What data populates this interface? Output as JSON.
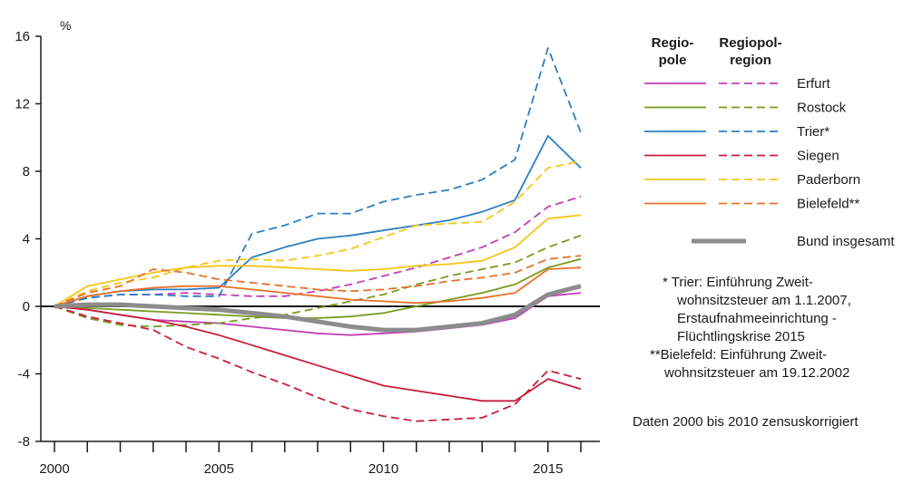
{
  "chart_data": {
    "type": "line",
    "unit_label": "%",
    "x": [
      2000,
      2001,
      2002,
      2003,
      2004,
      2005,
      2006,
      2007,
      2008,
      2009,
      2010,
      2011,
      2012,
      2013,
      2014,
      2015,
      2016
    ],
    "xlim": [
      1999.3,
      2016.6
    ],
    "ylim": [
      -8,
      16
    ],
    "y_ticks": [
      16,
      12,
      8,
      4,
      0,
      -4,
      -8
    ],
    "x_tick_labels": [
      "2000",
      "2005",
      "2010",
      "2015"
    ],
    "x_tick_label_years": [
      2000,
      2005,
      2010,
      2015
    ],
    "legend_headers": [
      "Regio-\npole",
      "Regiopol-\nregion"
    ],
    "legend_header_lines": [
      [
        "Regio-",
        "pole"
      ],
      [
        "Regiopol-",
        "region"
      ]
    ],
    "colors": {
      "Erfurt": "#c23fb6",
      "Rostock": "#7a9a1e",
      "Trier*": "#2a7fc0",
      "Siegen": "#c81e3c",
      "Paderborn": "#f5c518",
      "Bielefeld**": "#e8702a",
      "Bund insgesamt": "#8c8c8c"
    },
    "series": [
      {
        "name": "Erfurt",
        "style": "solid",
        "values": [
          0,
          -0.2,
          -0.5,
          -0.8,
          -0.9,
          -1.0,
          -1.2,
          -1.4,
          -1.6,
          -1.7,
          -1.6,
          -1.5,
          -1.3,
          -1.1,
          -0.7,
          0.6,
          0.8
        ]
      },
      {
        "name": "Erfurt",
        "style": "dashed",
        "values": [
          0,
          0.5,
          0.7,
          0.7,
          0.8,
          0.7,
          0.6,
          0.6,
          0.9,
          1.3,
          1.8,
          2.3,
          2.9,
          3.5,
          4.4,
          5.9,
          6.5
        ]
      },
      {
        "name": "Rostock",
        "style": "solid",
        "values": [
          0,
          -0.1,
          -0.2,
          -0.3,
          -0.4,
          -0.5,
          -0.6,
          -0.7,
          -0.7,
          -0.6,
          -0.4,
          0.0,
          0.4,
          0.8,
          1.3,
          2.3,
          2.8
        ]
      },
      {
        "name": "Rostock",
        "style": "dashed",
        "values": [
          0,
          -0.7,
          -1.1,
          -1.2,
          -1.1,
          -1.0,
          -0.7,
          -0.5,
          -0.1,
          0.3,
          0.7,
          1.3,
          1.8,
          2.2,
          2.6,
          3.5,
          4.2
        ]
      },
      {
        "name": "Trier*",
        "style": "solid",
        "values": [
          0,
          0.6,
          0.9,
          1.0,
          1.0,
          1.1,
          2.9,
          3.5,
          4.0,
          4.2,
          4.5,
          4.8,
          5.1,
          5.6,
          6.3,
          10.1,
          8.2
        ]
      },
      {
        "name": "Trier*",
        "style": "dashed",
        "values": [
          0,
          0.5,
          0.7,
          0.7,
          0.6,
          0.6,
          4.3,
          4.8,
          5.5,
          5.5,
          6.2,
          6.6,
          6.9,
          7.5,
          8.7,
          15.3,
          10.3
        ]
      },
      {
        "name": "Siegen",
        "style": "solid",
        "values": [
          0,
          -0.2,
          -0.5,
          -0.8,
          -1.2,
          -1.7,
          -2.3,
          -2.9,
          -3.5,
          -4.1,
          -4.7,
          -5.0,
          -5.3,
          -5.6,
          -5.6,
          -4.3,
          -4.9
        ]
      },
      {
        "name": "Siegen",
        "style": "dashed",
        "values": [
          0,
          -0.6,
          -1.0,
          -1.4,
          -2.4,
          -3.1,
          -3.9,
          -4.6,
          -5.4,
          -6.1,
          -6.5,
          -6.8,
          -6.7,
          -6.6,
          -5.8,
          -3.8,
          -4.3
        ]
      },
      {
        "name": "Paderborn",
        "style": "solid",
        "values": [
          0,
          1.2,
          1.6,
          2.0,
          2.3,
          2.4,
          2.4,
          2.3,
          2.2,
          2.1,
          2.2,
          2.4,
          2.5,
          2.7,
          3.5,
          5.2,
          5.4
        ]
      },
      {
        "name": "Paderborn",
        "style": "dashed",
        "values": [
          0,
          0.9,
          1.4,
          1.7,
          2.3,
          2.7,
          2.8,
          2.7,
          3.0,
          3.4,
          4.1,
          4.8,
          4.9,
          5.0,
          6.2,
          8.2,
          8.6
        ]
      },
      {
        "name": "Bielefeld**",
        "style": "solid",
        "values": [
          0,
          0.6,
          0.9,
          1.1,
          1.2,
          1.2,
          1.0,
          0.8,
          0.6,
          0.4,
          0.3,
          0.2,
          0.3,
          0.5,
          0.8,
          2.2,
          2.3
        ]
      },
      {
        "name": "Bielefeld**",
        "style": "dashed",
        "values": [
          0,
          0.8,
          1.2,
          2.2,
          2.0,
          1.6,
          1.4,
          1.2,
          1.0,
          0.9,
          1.0,
          1.2,
          1.5,
          1.7,
          2.0,
          2.8,
          3.0
        ]
      },
      {
        "name": "Bund insgesamt",
        "style": "bold",
        "values": [
          0,
          0.1,
          0.1,
          0.0,
          -0.1,
          -0.2,
          -0.4,
          -0.6,
          -0.9,
          -1.2,
          -1.4,
          -1.4,
          -1.2,
          -1.0,
          -0.5,
          0.7,
          1.2
        ]
      }
    ],
    "legend_entries": [
      "Erfurt",
      "Rostock",
      "Trier*",
      "Siegen",
      "Paderborn",
      "Bielefeld**"
    ],
    "legend_bund": "Bund insgesamt",
    "footnotes": {
      "trier": [
        "* Trier: Einführung Zweit-",
        "wohnsitzsteuer am 1.1.2007,",
        "Erstaufnahmeeinrichtung -",
        "Flüchtlingskrise 2015"
      ],
      "bielefeld": [
        "**Bielefeld: Einführung Zweit-",
        "wohnsitzsteuer am 19.12.2002"
      ],
      "data_note": "Daten 2000 bis 2010 zensuskorrigiert"
    }
  }
}
